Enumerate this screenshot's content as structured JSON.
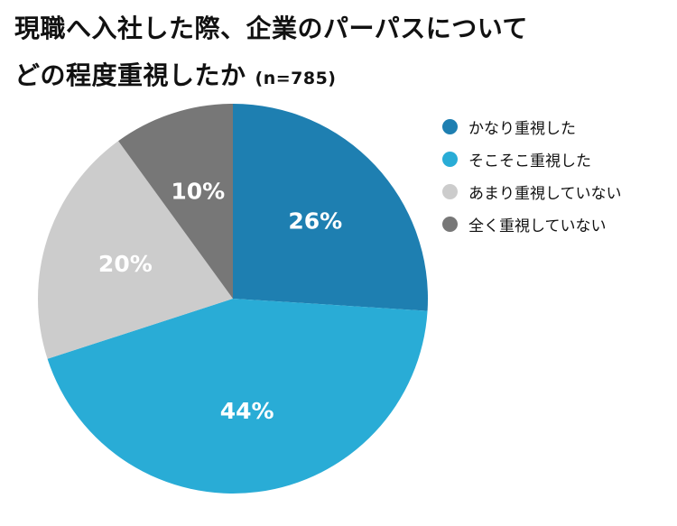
{
  "title": {
    "line1": "現職へ入社した際、企業のパーパスについて",
    "line2": "どの程度重視したか",
    "sample_size": "(n=785)"
  },
  "chart_data": {
    "type": "pie",
    "categories": [
      "かなり重視した",
      "そこそこ重視した",
      "あまり重視していない",
      "全く重視していない"
    ],
    "values": [
      26,
      44,
      20,
      10
    ],
    "labels": [
      "26%",
      "44%",
      "20%",
      "10%"
    ],
    "unit": "%",
    "colors": [
      "#1e7fb1",
      "#29acd6",
      "#cccccc",
      "#777777"
    ],
    "start_angle": "12 o'clock",
    "direction": "clockwise",
    "legend_position": "right"
  }
}
